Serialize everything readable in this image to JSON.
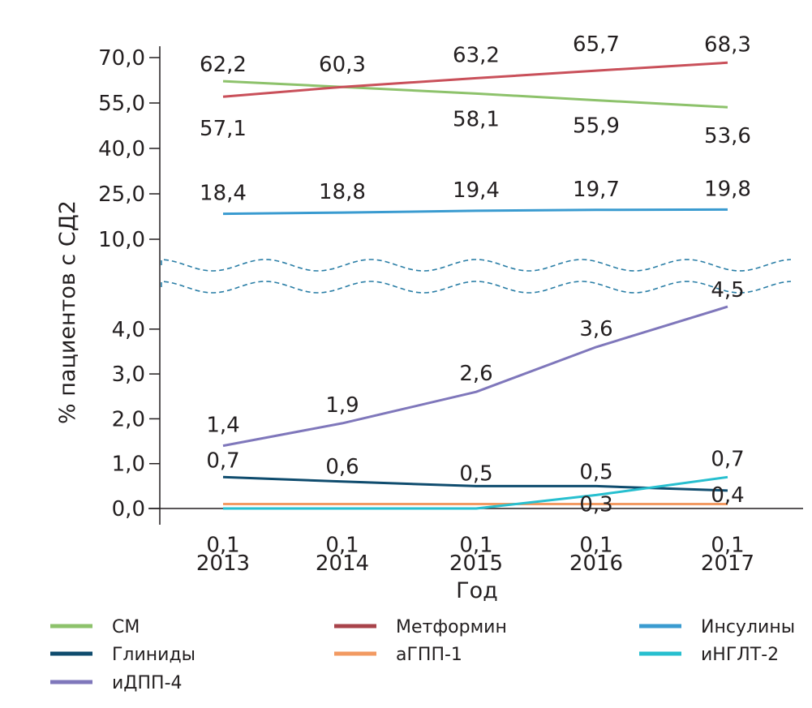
{
  "chart_data": {
    "type": "line",
    "title": "",
    "xlabel": "Год",
    "ylabel": "% пациентов с СД2",
    "categories": [
      "2013",
      "2014",
      "2015",
      "2016",
      "2017"
    ],
    "y_axis_break": true,
    "y_ticks_upper": [
      "70,0",
      "55,0",
      "40,0",
      "25,0",
      "10,0"
    ],
    "y_ticks_lower": [
      "4,0",
      "3,0",
      "2,0",
      "1,0",
      "0,0"
    ],
    "ylim_upper": [
      10,
      70
    ],
    "ylim_lower": [
      0,
      4
    ],
    "grid": false,
    "legend_position": "bottom",
    "series": [
      {
        "name": "СМ",
        "color": "#8dc26b",
        "segment": "upper",
        "values": [
          62.2,
          60.3,
          58.1,
          55.9,
          53.6
        ],
        "labels": [
          "62,2",
          "",
          "58,1",
          "55,9",
          "53,6"
        ]
      },
      {
        "name": "Метформин",
        "color": "#c9505a",
        "segment": "upper",
        "values": [
          57.1,
          60.3,
          63.2,
          65.7,
          68.3
        ],
        "labels": [
          "57,1",
          "60,3",
          "63,2",
          "65,7",
          "68,3"
        ]
      },
      {
        "name": "Инсулины",
        "color": "#3a9bd0",
        "segment": "upper",
        "values": [
          18.4,
          18.8,
          19.4,
          19.7,
          19.8
        ],
        "labels": [
          "18,4",
          "18,8",
          "19,4",
          "19,7",
          "19,8"
        ]
      },
      {
        "name": "Глиниды",
        "color": "#0f4c6e",
        "segment": "lower",
        "values": [
          0.7,
          0.6,
          0.5,
          0.5,
          0.4
        ],
        "labels": [
          "0,7",
          "0,6",
          "0,5",
          "0,5",
          "0,4"
        ]
      },
      {
        "name": "аГПП-1",
        "color": "#f29a62",
        "segment": "lower",
        "values": [
          0.1,
          0.1,
          0.1,
          0.1,
          0.1
        ],
        "labels": [
          "0,1",
          "0,1",
          "0,1",
          "0,1",
          "0,1"
        ]
      },
      {
        "name": "иНГЛТ-2",
        "color": "#27bfcf",
        "segment": "lower",
        "values": [
          0.0,
          0.0,
          0.0,
          0.3,
          0.7
        ],
        "labels": [
          "",
          "",
          "",
          "0,3",
          "0,7"
        ]
      },
      {
        "name": "иДПП-4",
        "color": "#7f77bb",
        "segment": "lower",
        "values": [
          1.4,
          1.9,
          2.6,
          3.6,
          4.5
        ],
        "labels": [
          "1,4",
          "1,9",
          "2,6",
          "3,6",
          "4,5"
        ]
      }
    ],
    "legend": [
      {
        "name": "СМ",
        "color": "#8dc26b"
      },
      {
        "name": "Метформин",
        "color": "#a8434a"
      },
      {
        "name": "Инсулины",
        "color": "#3a9bd0"
      },
      {
        "name": "Глиниды",
        "color": "#0f4c6e"
      },
      {
        "name": "аГПП-1",
        "color": "#f29a62"
      },
      {
        "name": "иНГЛТ-2",
        "color": "#27bfcf"
      },
      {
        "name": "иДПП-4",
        "color": "#7f77bb"
      }
    ],
    "break_marker_color": "#2a7ea6"
  }
}
